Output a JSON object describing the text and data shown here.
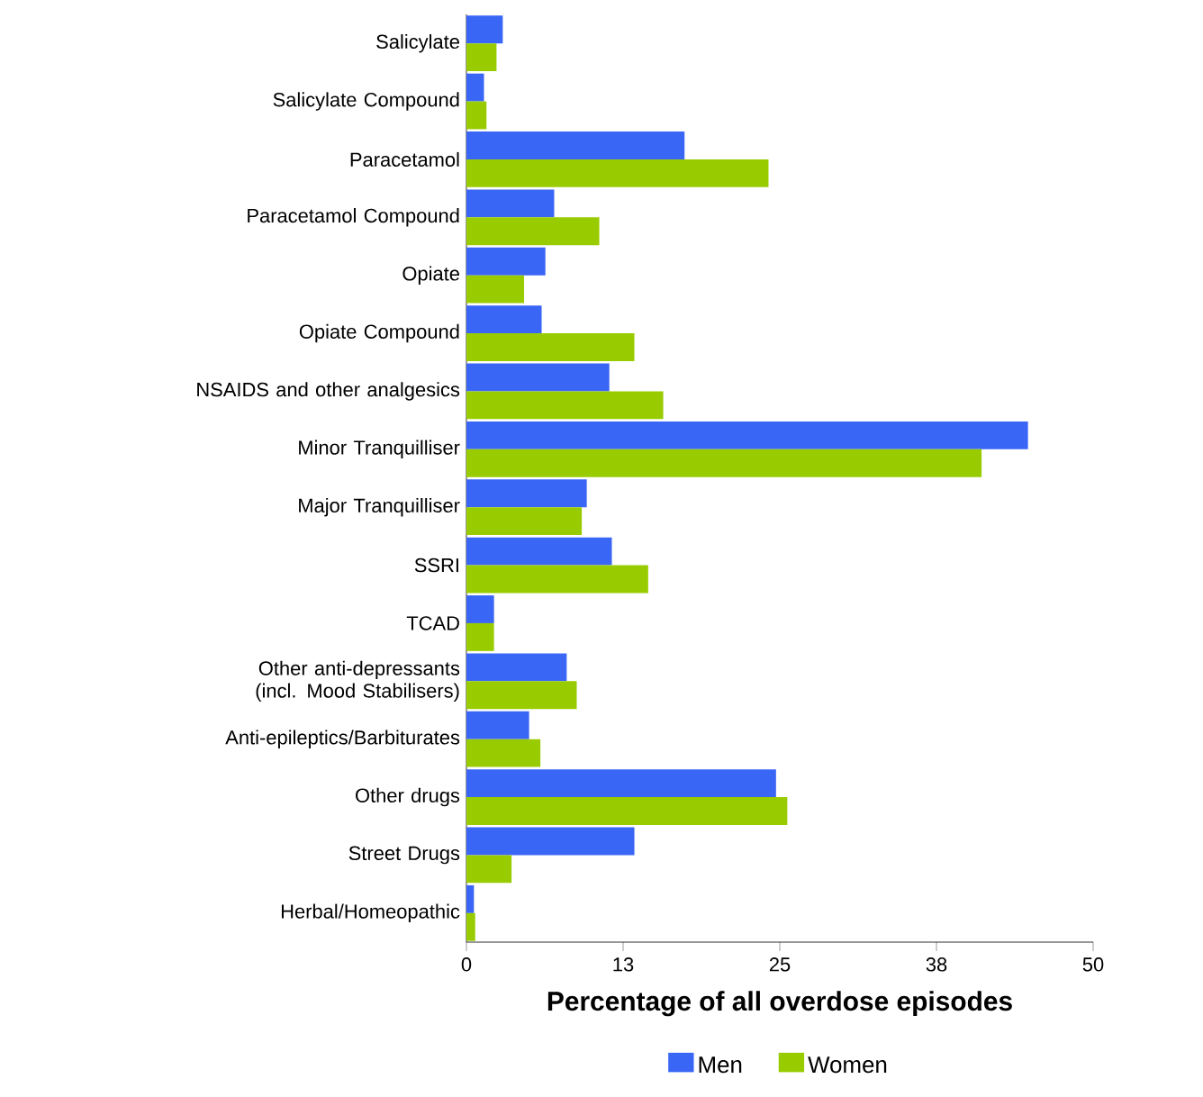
{
  "chart_data": {
    "type": "bar",
    "orientation": "horizontal",
    "xlabel": "Percentage of all overdose episodes",
    "legend": "bottom",
    "categories": [
      "Salicylate",
      "Salicylate Compound",
      "Paracetamol",
      "Paracetamol Compound",
      "Opiate",
      "Opiate Compound",
      "NSAIDS and other analgesics",
      "Minor Tranquilliser",
      "Major Tranquilliser",
      "SSRI",
      "TCAD",
      "Other anti-depressants (incl. Mood Stabilisers)",
      "Anti-epileptics/Barbiturates",
      "Other drugs",
      "Street Drugs",
      "Herbal/Homeopathic"
    ],
    "series": [
      {
        "name": "Men",
        "color": "#3a66f5",
        "values": [
          2.9,
          1.4,
          17.4,
          7.0,
          6.3,
          6.0,
          11.4,
          44.8,
          9.6,
          11.6,
          2.2,
          8.0,
          5.0,
          24.7,
          13.4,
          0.6
        ]
      },
      {
        "name": "Women",
        "color": "#99cc00",
        "values": [
          2.4,
          1.6,
          24.1,
          10.6,
          4.6,
          13.4,
          15.7,
          41.1,
          9.2,
          14.5,
          2.2,
          8.8,
          5.9,
          25.6,
          3.6,
          0.7
        ]
      }
    ],
    "xlim": [
      0,
      50
    ],
    "xticks": [
      0,
      {
        "value": 12.5,
        "label": "13"
      },
      25,
      {
        "value": 37.5,
        "label": "38"
      },
      50
    ]
  }
}
